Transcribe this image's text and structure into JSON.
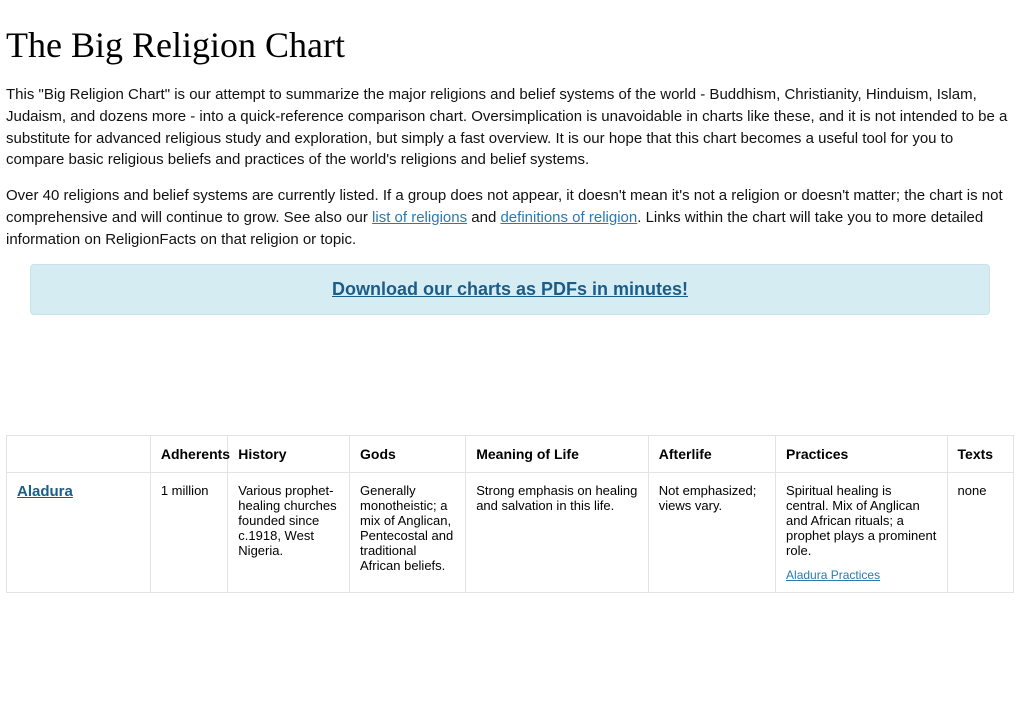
{
  "title": "The Big Religion Chart",
  "intro1": "This \"Big Religion Chart\" is our attempt to summarize the major religions and belief systems of the world - Buddhism, Christianity, Hinduism, Islam, Judaism, and dozens more - into a quick-reference comparison chart. Oversimplication is unavoidable in charts like these, and it is not intended to be a substitute for advanced religious study and exploration, but simply a fast overview. It is our hope that this chart becomes a useful tool for you to compare basic religious beliefs and practices of the world's religions and belief systems.",
  "intro2_pre": "Over 40 religions and belief systems are currently listed. If a group does not appear, it doesn't mean it's not a religion or doesn't matter; the chart is not comprehensive and will continue to grow. See also our ",
  "intro2_link1": "list of religions",
  "intro2_mid1": " and ",
  "intro2_link2": "definitions of religion",
  "intro2_post": ". Links within the chart will take you to more detailed information on ReligionFacts on that religion or topic.",
  "banner_text": "Download our charts as PDFs in minutes!",
  "table": {
    "columns": [
      "",
      "Adherents",
      "History",
      "Gods",
      "Meaning of Life",
      "Afterlife",
      "Practices",
      "Texts"
    ],
    "col_widths": [
      "130px",
      "70px",
      "110px",
      "105px",
      "165px",
      "115px",
      "155px",
      "60px"
    ],
    "rows": [
      {
        "name": "Aladura",
        "adherents": "1 million",
        "history": "Various prophet-healing churches founded since c.1918, West Nigeria.",
        "gods": "Generally monotheistic; a mix of Anglican, Pentecostal and traditional African beliefs.",
        "meaning": "Strong emphasis on healing and salvation in this life.",
        "afterlife": "Not emphasized; views vary.",
        "practices": "Spiritual healing is central. Mix of Anglican and African rituals; a prophet plays a prominent role.",
        "practices_link": "Aladura Practices",
        "texts": "none"
      }
    ]
  },
  "colors": {
    "link": "#2a7ab0",
    "banner_bg": "#d6ecf3",
    "banner_text": "#1b5d87",
    "border": "#e3e3e3"
  }
}
